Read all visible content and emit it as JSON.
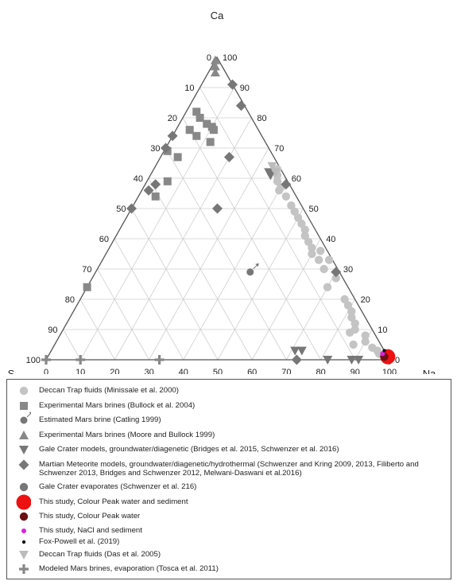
{
  "chart_data": {
    "type": "ternary",
    "vertices": {
      "top": "Ca",
      "left": "S",
      "right": "Na"
    },
    "ticks": [
      "0",
      "10",
      "20",
      "30",
      "40",
      "50",
      "60",
      "70",
      "80",
      "90",
      "100"
    ],
    "grid": true,
    "series": [
      {
        "name": "Deccan Trap fluids (Minissale et al. 2000)",
        "marker": "circle",
        "color": "#c4c4c4",
        "points": [
          {
            "ca": 57,
            "na": 40,
            "s": 3
          },
          {
            "ca": 59,
            "na": 38,
            "s": 3
          },
          {
            "ca": 56,
            "na": 40,
            "s": 4
          },
          {
            "ca": 54,
            "na": 43,
            "s": 3
          },
          {
            "ca": 51,
            "na": 46,
            "s": 3
          },
          {
            "ca": 49,
            "na": 48,
            "s": 3
          },
          {
            "ca": 47,
            "na": 50,
            "s": 3
          },
          {
            "ca": 45,
            "na": 52,
            "s": 3
          },
          {
            "ca": 43,
            "na": 54,
            "s": 3
          },
          {
            "ca": 41,
            "na": 55,
            "s": 4
          },
          {
            "ca": 39,
            "na": 57,
            "s": 4
          },
          {
            "ca": 37,
            "na": 59,
            "s": 4
          },
          {
            "ca": 35,
            "na": 60,
            "s": 5
          },
          {
            "ca": 33,
            "na": 63,
            "s": 4
          },
          {
            "ca": 30,
            "na": 66,
            "s": 4
          },
          {
            "ca": 27,
            "na": 71,
            "s": 2
          },
          {
            "ca": 24,
            "na": 70,
            "s": 6
          },
          {
            "ca": 20,
            "na": 77,
            "s": 3
          },
          {
            "ca": 18,
            "na": 79,
            "s": 3
          },
          {
            "ca": 16,
            "na": 81,
            "s": 3
          },
          {
            "ca": 14,
            "na": 82,
            "s": 4
          },
          {
            "ca": 12,
            "na": 84,
            "s": 4
          },
          {
            "ca": 10,
            "na": 85,
            "s": 5
          },
          {
            "ca": 9,
            "na": 84,
            "s": 7
          },
          {
            "ca": 8,
            "na": 89,
            "s": 3
          },
          {
            "ca": 6,
            "na": 90,
            "s": 4
          },
          {
            "ca": 5,
            "na": 87,
            "s": 8
          },
          {
            "ca": 4,
            "na": 93,
            "s": 3
          },
          {
            "ca": 3,
            "na": 95,
            "s": 2
          },
          {
            "ca": 2,
            "na": 96,
            "s": 2
          },
          {
            "ca": 63,
            "na": 36,
            "s": 1
          },
          {
            "ca": 36,
            "na": 62,
            "s": 2
          },
          {
            "ca": 33,
            "na": 66,
            "s": 1
          },
          {
            "ca": 61,
            "na": 37,
            "s": 2
          }
        ]
      },
      {
        "name": "Experimental Mars brines (Bullock et al. 2004)",
        "marker": "square",
        "color": "#888888",
        "points": [
          {
            "ca": 82,
            "na": 3,
            "s": 15
          },
          {
            "ca": 80,
            "na": 5,
            "s": 15
          },
          {
            "ca": 78,
            "na": 8,
            "s": 14
          },
          {
            "ca": 77,
            "na": 10,
            "s": 13
          },
          {
            "ca": 76,
            "na": 4,
            "s": 20
          },
          {
            "ca": 76,
            "na": 11,
            "s": 13
          },
          {
            "ca": 74,
            "na": 7,
            "s": 19
          },
          {
            "ca": 72,
            "na": 12,
            "s": 16
          },
          {
            "ca": 69,
            "na": 1,
            "s": 30
          },
          {
            "ca": 67,
            "na": 5,
            "s": 28
          },
          {
            "ca": 59,
            "na": 6,
            "s": 35
          },
          {
            "ca": 54,
            "na": 5,
            "s": 41
          },
          {
            "ca": 24,
            "na": 0,
            "s": 76
          }
        ]
      },
      {
        "name": "Estimated Mars brine (Catling 1999)",
        "marker": "circle-arrow",
        "color": "#777777",
        "points": [
          {
            "ca": 29,
            "na": 45,
            "s": 26
          }
        ]
      },
      {
        "name": "Experimental Mars brines (Moore and Bullock 1999)",
        "marker": "triangle-up",
        "color": "#888888",
        "points": [
          {
            "ca": 99,
            "na": 0,
            "s": 1
          },
          {
            "ca": 97,
            "na": 1,
            "s": 2
          },
          {
            "ca": 95,
            "na": 2,
            "s": 3
          }
        ]
      },
      {
        "name": "Gale Crater models, groundwater/diagenetic (Bridges et al. 2015, Schwenzer et al. 2016)",
        "marker": "triangle-down",
        "color": "#777777",
        "points": [
          {
            "ca": 3,
            "na": 71,
            "s": 26
          },
          {
            "ca": 3,
            "na": 73,
            "s": 24
          },
          {
            "ca": 0,
            "na": 82,
            "s": 18
          },
          {
            "ca": 0,
            "na": 89,
            "s": 11
          },
          {
            "ca": 0,
            "na": 91,
            "s": 9
          },
          {
            "ca": 61,
            "na": 35,
            "s": 4
          },
          {
            "ca": 62,
            "na": 34,
            "s": 4
          }
        ]
      },
      {
        "name": "Martian Meteorite models, groundwater/diagenetic/hydrothermal (Schwenzer and Kring 2009, 2013, Filiberto and Schwenzer 2013, Bridges and Schwenzer 2012, Melwani-Daswani et al.2016)",
        "marker": "diamond",
        "color": "#777777",
        "points": [
          {
            "ca": 91,
            "na": 9,
            "s": 0
          },
          {
            "ca": 84,
            "na": 15,
            "s": 1
          },
          {
            "ca": 74,
            "na": 0,
            "s": 26
          },
          {
            "ca": 70,
            "na": 0,
            "s": 30
          },
          {
            "ca": 67,
            "na": 20,
            "s": 13
          },
          {
            "ca": 58,
            "na": 3,
            "s": 39
          },
          {
            "ca": 56,
            "na": 2,
            "s": 42
          },
          {
            "ca": 50,
            "na": 0,
            "s": 50
          },
          {
            "ca": 50,
            "na": 25,
            "s": 25
          },
          {
            "ca": 58,
            "na": 41,
            "s": 1
          },
          {
            "ca": 29,
            "na": 70,
            "s": 1
          },
          {
            "ca": 0,
            "na": 73,
            "s": 27
          },
          {
            "ca": 0,
            "na": 100,
            "s": 0
          }
        ]
      },
      {
        "name": "Gale Crater evaporates (Schwenzer et al. 216)",
        "marker": "circle",
        "color": "#777777",
        "points": []
      },
      {
        "name": "This study, Colour Peak water and sediment",
        "marker": "circle-large",
        "color": "#ee1111",
        "points": [
          {
            "ca": 1,
            "na": 99,
            "s": 0
          }
        ]
      },
      {
        "name": "This study, Colour Peak water",
        "marker": "circle",
        "color": "#6b0f14",
        "points": [
          {
            "ca": 1,
            "na": 98,
            "s": 1
          }
        ]
      },
      {
        "name": "This study, NaCl and sediment",
        "marker": "circle-small",
        "color": "#dd22dd",
        "points": [
          {
            "ca": 2,
            "na": 97,
            "s": 1
          }
        ]
      },
      {
        "name": "Fox-Powell et al. (2019)",
        "marker": "circle-tiny",
        "color": "#111111",
        "points": [
          {
            "ca": 3,
            "na": 97,
            "s": 0
          }
        ]
      },
      {
        "name": "Deccan Trap fluids (Das et al. 2005)",
        "marker": "triangle-down",
        "color": "#bbbbbb",
        "points": [
          {
            "ca": 64,
            "na": 34,
            "s": 2
          },
          {
            "ca": 62,
            "na": 36,
            "s": 2
          }
        ]
      },
      {
        "name": "Modeled Mars brines, evaporation (Tosca et al. 2011)",
        "marker": "plus",
        "color": "#888888",
        "points": [
          {
            "ca": 0,
            "na": 0,
            "s": 100
          },
          {
            "ca": 0,
            "na": 10,
            "s": 90
          },
          {
            "ca": 0,
            "na": 33,
            "s": 67
          }
        ]
      }
    ]
  }
}
